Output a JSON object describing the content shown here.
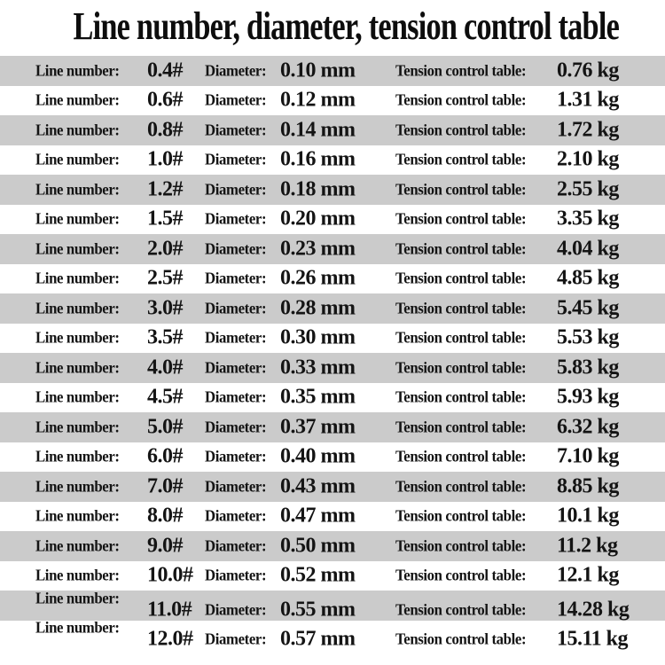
{
  "title": "Line number, diameter, tension control table",
  "labels": {
    "line_number": "Line number:",
    "diameter": "Diameter:",
    "tension": "Tension control table:"
  },
  "rows": [
    {
      "line_number": "0.4#",
      "diameter": "0.10 mm",
      "tension": "0.76 kg"
    },
    {
      "line_number": "0.6#",
      "diameter": "0.12 mm",
      "tension": "1.31 kg"
    },
    {
      "line_number": "0.8#",
      "diameter": "0.14 mm",
      "tension": "1.72 kg"
    },
    {
      "line_number": "1.0#",
      "diameter": "0.16 mm",
      "tension": "2.10 kg"
    },
    {
      "line_number": "1.2#",
      "diameter": "0.18 mm",
      "tension": "2.55 kg"
    },
    {
      "line_number": "1.5#",
      "diameter": "0.20 mm",
      "tension": "3.35 kg"
    },
    {
      "line_number": "2.0#",
      "diameter": "0.23 mm",
      "tension": "4.04 kg"
    },
    {
      "line_number": "2.5#",
      "diameter": "0.26 mm",
      "tension": "4.85 kg"
    },
    {
      "line_number": "3.0#",
      "diameter": "0.28 mm",
      "tension": "5.45 kg"
    },
    {
      "line_number": "3.5#",
      "diameter": "0.30 mm",
      "tension": "5.53 kg"
    },
    {
      "line_number": "4.0#",
      "diameter": "0.33 mm",
      "tension": "5.83 kg"
    },
    {
      "line_number": "4.5#",
      "diameter": "0.35 mm",
      "tension": "5.93 kg"
    },
    {
      "line_number": "5.0#",
      "diameter": "0.37 mm",
      "tension": "6.32 kg"
    },
    {
      "line_number": "6.0#",
      "diameter": "0.40 mm",
      "tension": "7.10 kg"
    },
    {
      "line_number": "7.0#",
      "diameter": "0.43 mm",
      "tension": "8.85 kg"
    },
    {
      "line_number": "8.0#",
      "diameter": "0.47 mm",
      "tension": "10.1 kg"
    },
    {
      "line_number": "9.0#",
      "diameter": "0.50 mm",
      "tension": "11.2 kg"
    },
    {
      "line_number": "10.0#",
      "diameter": "0.52 mm",
      "tension": "12.1 kg"
    },
    {
      "line_number": "11.0#",
      "diameter": "0.55 mm",
      "tension": "14.28 kg"
    },
    {
      "line_number": "12.0#",
      "diameter": "0.57 mm",
      "tension": "15.11 kg"
    }
  ],
  "chart_data": {
    "type": "table",
    "title": "Line number, diameter, tension control table",
    "columns": [
      "Line number",
      "Diameter (mm)",
      "Tension control (kg)"
    ],
    "rows": [
      [
        "0.4#",
        0.1,
        0.76
      ],
      [
        "0.6#",
        0.12,
        1.31
      ],
      [
        "0.8#",
        0.14,
        1.72
      ],
      [
        "1.0#",
        0.16,
        2.1
      ],
      [
        "1.2#",
        0.18,
        2.55
      ],
      [
        "1.5#",
        0.2,
        3.35
      ],
      [
        "2.0#",
        0.23,
        4.04
      ],
      [
        "2.5#",
        0.26,
        4.85
      ],
      [
        "3.0#",
        0.28,
        5.45
      ],
      [
        "3.5#",
        0.3,
        5.53
      ],
      [
        "4.0#",
        0.33,
        5.83
      ],
      [
        "4.5#",
        0.35,
        5.93
      ],
      [
        "5.0#",
        0.37,
        6.32
      ],
      [
        "6.0#",
        0.4,
        7.1
      ],
      [
        "7.0#",
        0.43,
        8.85
      ],
      [
        "8.0#",
        0.47,
        10.1
      ],
      [
        "9.0#",
        0.5,
        11.2
      ],
      [
        "10.0#",
        0.52,
        12.1
      ],
      [
        "11.0#",
        0.55,
        14.28
      ],
      [
        "12.0#",
        0.57,
        15.11
      ]
    ],
    "layout_hints": {
      "row_striping": "odd rows shaded gray starting with first data row",
      "grid": false,
      "legend": false
    }
  },
  "colors": {
    "background": "#ffffff",
    "row_alt": "#cbcbcb",
    "text": "#111111"
  }
}
